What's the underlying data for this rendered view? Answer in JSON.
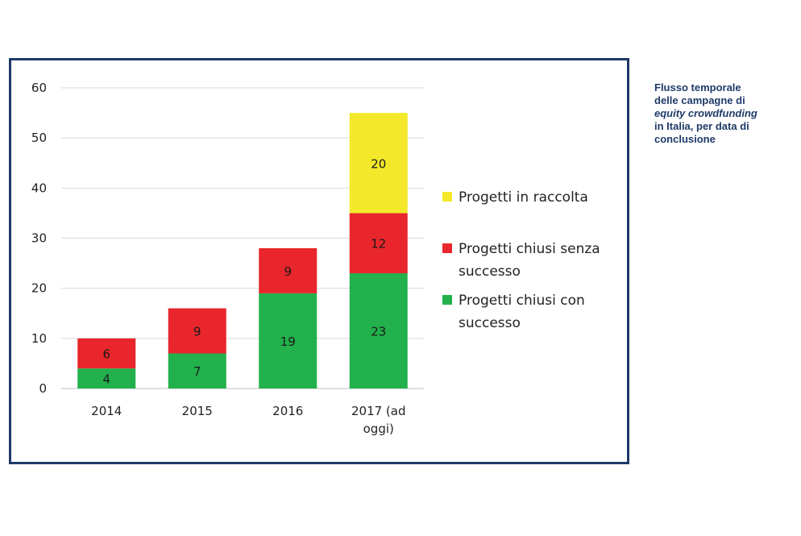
{
  "chart_data": {
    "type": "bar",
    "stacked": true,
    "categories": [
      "2014",
      "2015",
      "2016",
      "2017 (ad oggi)"
    ],
    "category_lines": [
      [
        "2014"
      ],
      [
        "2015"
      ],
      [
        "2016"
      ],
      [
        "2017 (ad",
        "oggi)"
      ]
    ],
    "series": [
      {
        "name": "Progetti chiusi con successo",
        "name_lines": [
          "Progetti chiusi con",
          "successo"
        ],
        "color": "#22b14c",
        "values": [
          4,
          7,
          19,
          23
        ]
      },
      {
        "name": "Progetti chiusi senza successo",
        "name_lines": [
          "Progetti chiusi senza",
          "successo"
        ],
        "color": "#e8262b",
        "values": [
          6,
          9,
          9,
          12
        ]
      },
      {
        "name": "Progetti in raccolta",
        "name_lines": [
          "Progetti in raccolta"
        ],
        "color": "#f3e92a",
        "values": [
          0,
          0,
          0,
          20
        ]
      }
    ],
    "yticks": [
      0,
      10,
      20,
      30,
      40,
      50,
      60
    ],
    "ylim": [
      0,
      60
    ],
    "grid": true,
    "legend_position": "right",
    "title": "",
    "xlabel": "",
    "ylabel": ""
  },
  "caption": {
    "line1": "Flusso temporale",
    "line2": "delle campagne di",
    "line3": "equity crowdfunding",
    "line4": "in Italia, per data di",
    "line5": "conclusione"
  },
  "colors": {
    "frame": "#1f3a68",
    "caption": "#1f3a68",
    "grid": "#d9d9d9"
  }
}
